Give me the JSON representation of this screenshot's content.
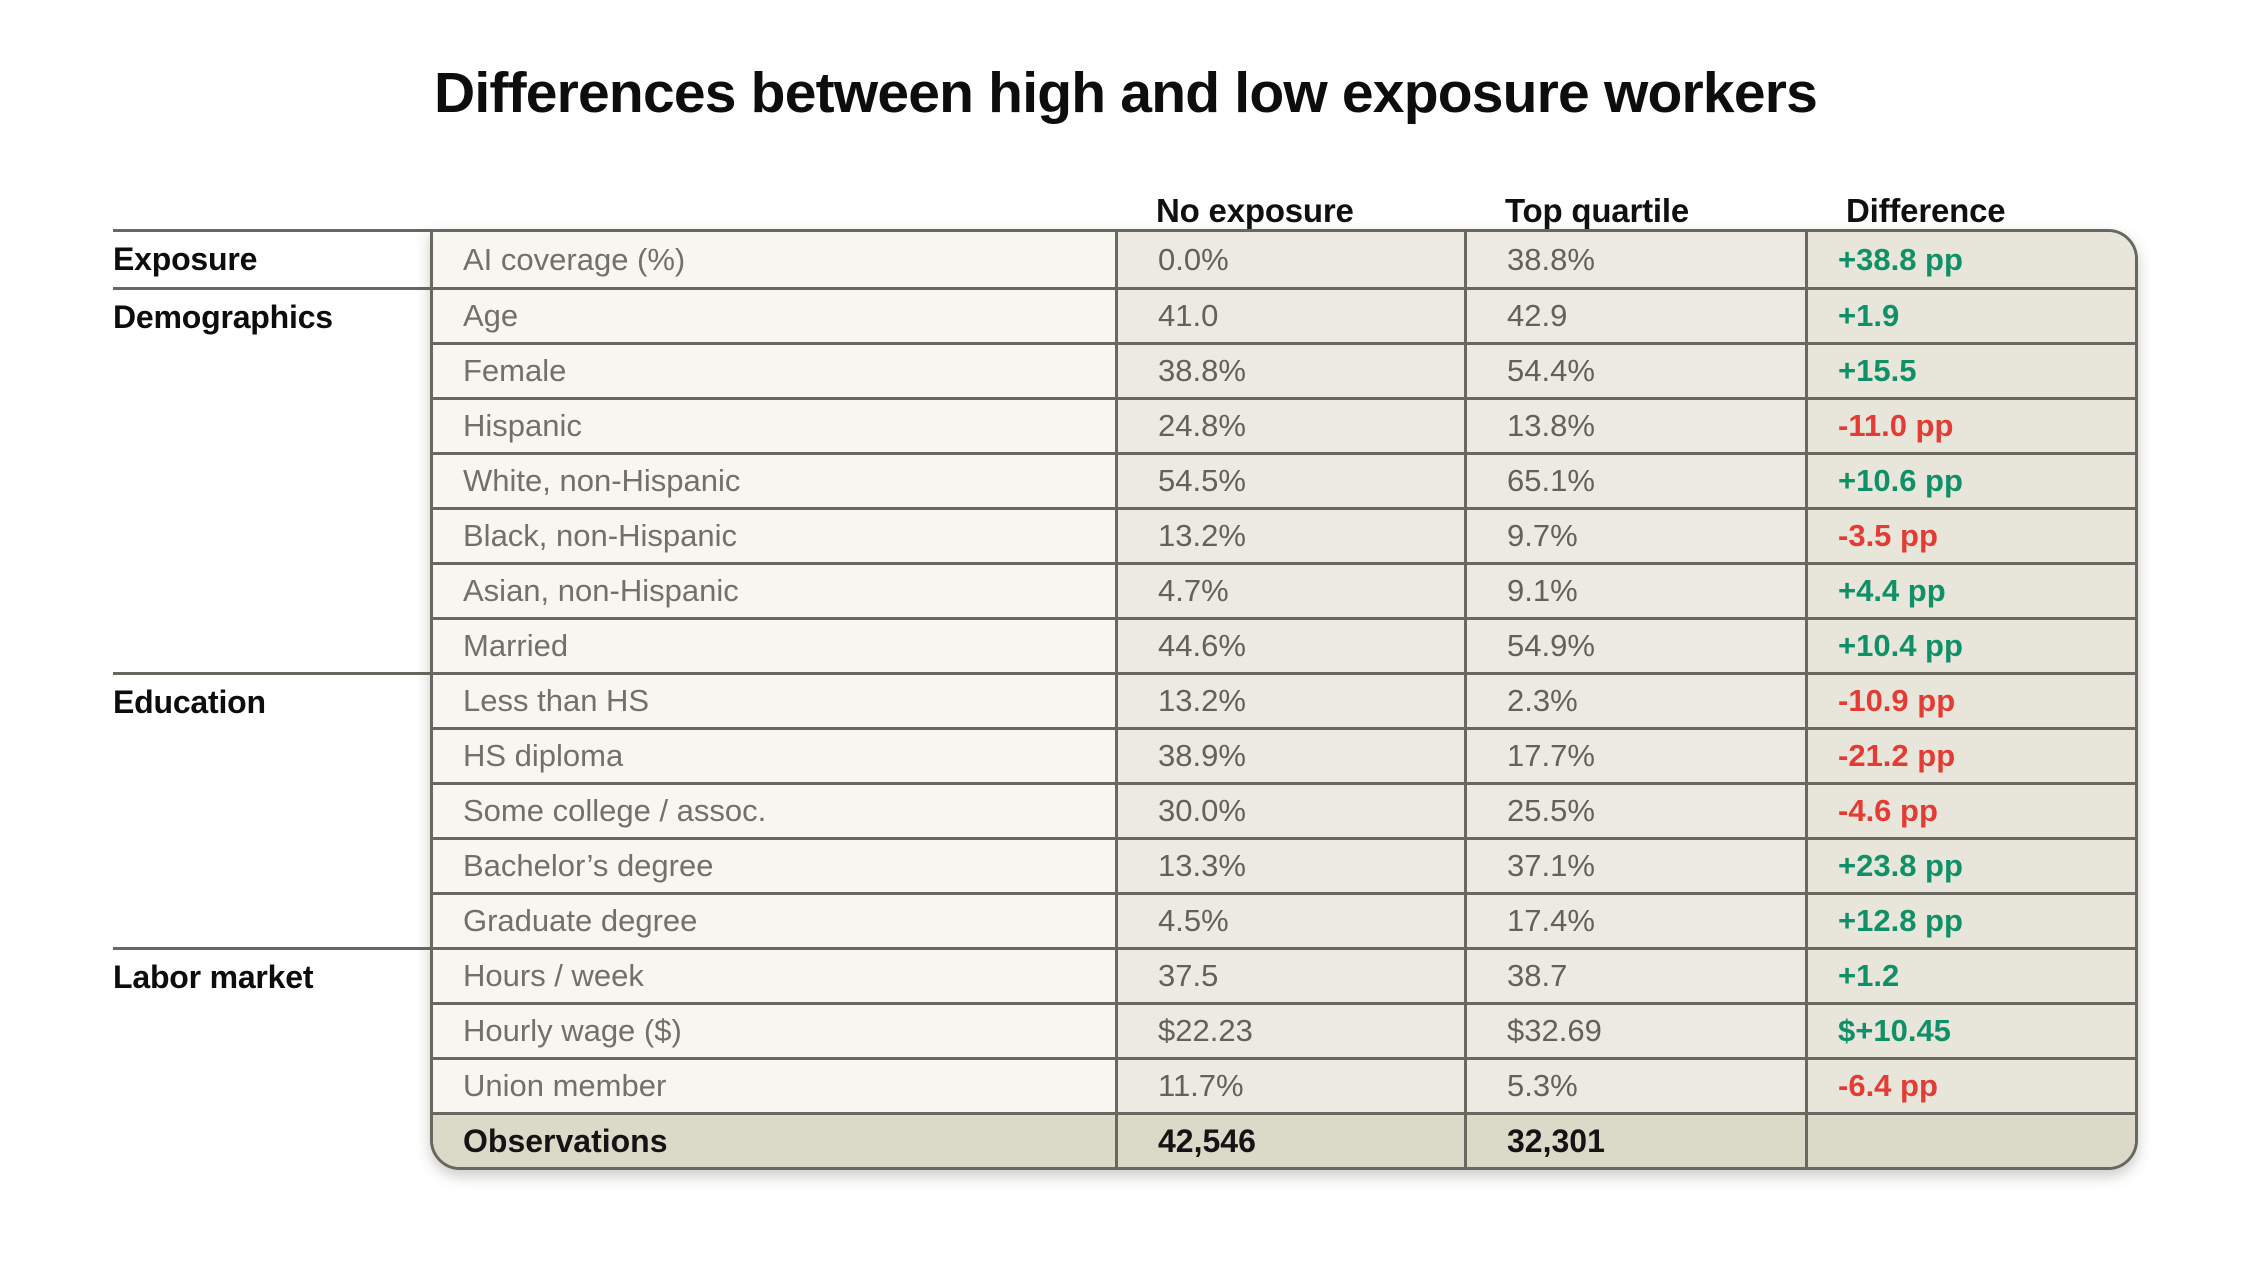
{
  "title": "Differences between high and low exposure workers",
  "chart_data": {
    "type": "table",
    "title": "Differences between high and low exposure workers",
    "columns": [
      "No exposure",
      "Top quartile",
      "Difference"
    ],
    "sections": [
      {
        "category": "Exposure",
        "rows": [
          {
            "label": "AI coverage (%)",
            "no_exposure": "0.0%",
            "top_quartile": "38.8%",
            "difference": "+38.8 pp",
            "trend": "positive"
          }
        ]
      },
      {
        "category": "Demographics",
        "rows": [
          {
            "label": "Age",
            "no_exposure": "41.0",
            "top_quartile": "42.9",
            "difference": "+1.9",
            "trend": "positive"
          },
          {
            "label": "Female",
            "no_exposure": "38.8%",
            "top_quartile": "54.4%",
            "difference": "+15.5",
            "trend": "positive"
          },
          {
            "label": "Hispanic",
            "no_exposure": "24.8%",
            "top_quartile": "13.8%",
            "difference": "-11.0 pp",
            "trend": "negative"
          },
          {
            "label": "White, non-Hispanic",
            "no_exposure": "54.5%",
            "top_quartile": "65.1%",
            "difference": "+10.6 pp",
            "trend": "positive"
          },
          {
            "label": "Black, non-Hispanic",
            "no_exposure": "13.2%",
            "top_quartile": "9.7%",
            "difference": "-3.5 pp",
            "trend": "negative"
          },
          {
            "label": "Asian, non-Hispanic",
            "no_exposure": "4.7%",
            "top_quartile": "9.1%",
            "difference": "+4.4 pp",
            "trend": "positive"
          },
          {
            "label": "Married",
            "no_exposure": "44.6%",
            "top_quartile": "54.9%",
            "difference": "+10.4 pp",
            "trend": "positive"
          }
        ]
      },
      {
        "category": "Education",
        "rows": [
          {
            "label": "Less than HS",
            "no_exposure": "13.2%",
            "top_quartile": "2.3%",
            "difference": "-10.9 pp",
            "trend": "negative"
          },
          {
            "label": "HS diploma",
            "no_exposure": "38.9%",
            "top_quartile": "17.7%",
            "difference": "-21.2 pp",
            "trend": "negative"
          },
          {
            "label": "Some college / assoc.",
            "no_exposure": "30.0%",
            "top_quartile": "25.5%",
            "difference": "-4.6 pp",
            "trend": "negative"
          },
          {
            "label": "Bachelor’s degree",
            "no_exposure": "13.3%",
            "top_quartile": "37.1%",
            "difference": "+23.8 pp",
            "trend": "positive"
          },
          {
            "label": "Graduate degree",
            "no_exposure": "4.5%",
            "top_quartile": "17.4%",
            "difference": "+12.8 pp",
            "trend": "positive"
          }
        ]
      },
      {
        "category": "Labor market",
        "rows": [
          {
            "label": "Hours / week",
            "no_exposure": "37.5",
            "top_quartile": "38.7",
            "difference": "+1.2",
            "trend": "positive"
          },
          {
            "label": "Hourly wage ($)",
            "no_exposure": "$22.23",
            "top_quartile": "$32.69",
            "difference": "$+10.45",
            "trend": "positive"
          },
          {
            "label": "Union member",
            "no_exposure": "11.7%",
            "top_quartile": "5.3%",
            "difference": "-6.4 pp",
            "trend": "negative"
          }
        ]
      }
    ],
    "footer": {
      "label": "Observations",
      "no_exposure": "42,546",
      "top_quartile": "32,301",
      "difference": ""
    }
  },
  "colors": {
    "positive_green": "#109068",
    "negative_red": "#e23c35",
    "border_gray": "#686861",
    "label_cell_bg": "#f7f6f0",
    "value_cell_bg": "#edebe1",
    "difference_cell_bg": "#e8e6da",
    "footer_row_bg": "#dbd9c8"
  }
}
